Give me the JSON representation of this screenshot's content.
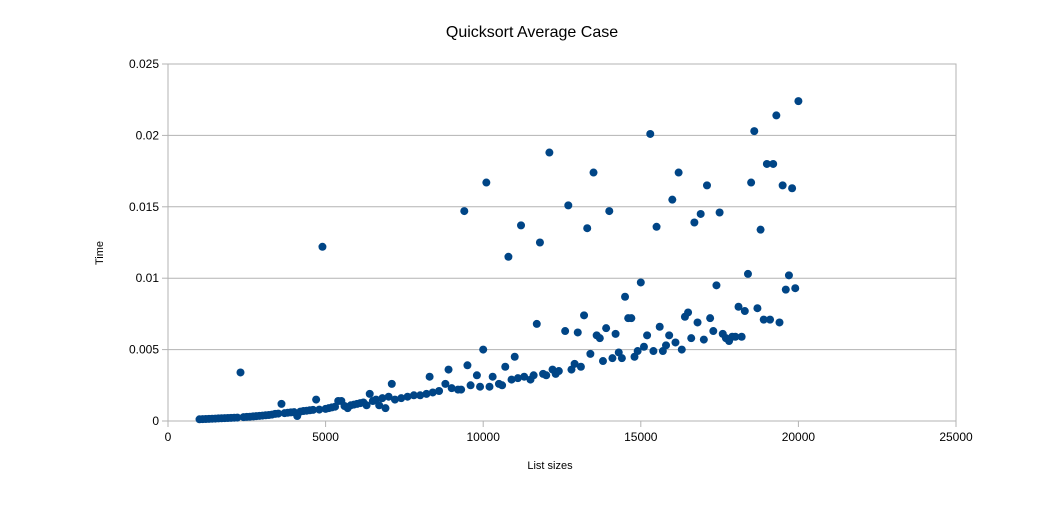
{
  "chart_data": {
    "type": "scatter",
    "title": "Quicksort Average Case",
    "xlabel": "List sizes",
    "ylabel": "Time",
    "xlim": [
      0,
      25000
    ],
    "ylim": [
      0,
      0.025
    ],
    "x_ticks": [
      "0",
      "5000",
      "10000",
      "15000",
      "20000",
      "25000"
    ],
    "y_ticks": [
      "0",
      "0.005",
      "0.01",
      "0.015",
      "0.02",
      "0.025"
    ],
    "grid": "horizontal",
    "legend": "none",
    "marker_color": "#004586",
    "series": [
      {
        "points": [
          [
            1000,
            0.00012
          ],
          [
            1100,
            0.00013
          ],
          [
            1200,
            0.00014
          ],
          [
            1300,
            0.00015
          ],
          [
            1400,
            0.00016
          ],
          [
            1500,
            0.00017
          ],
          [
            1600,
            0.00018
          ],
          [
            1700,
            0.00019
          ],
          [
            1800,
            0.0002
          ],
          [
            1900,
            0.00021
          ],
          [
            2000,
            0.00022
          ],
          [
            2100,
            0.00023
          ],
          [
            2200,
            0.00024
          ],
          [
            2300,
            0.0034
          ],
          [
            2400,
            0.00027
          ],
          [
            2500,
            0.00029
          ],
          [
            2600,
            0.0003
          ],
          [
            2700,
            0.00032
          ],
          [
            2800,
            0.00034
          ],
          [
            2900,
            0.00036
          ],
          [
            3000,
            0.00038
          ],
          [
            3100,
            0.0004
          ],
          [
            3200,
            0.00042
          ],
          [
            3300,
            0.00045
          ],
          [
            3400,
            0.0005
          ],
          [
            3500,
            0.00052
          ],
          [
            3600,
            0.0012
          ],
          [
            3700,
            0.00055
          ],
          [
            3800,
            0.00058
          ],
          [
            3900,
            0.0006
          ],
          [
            4000,
            0.00062
          ],
          [
            4100,
            0.00035
          ],
          [
            4200,
            0.00066
          ],
          [
            4300,
            0.0007
          ],
          [
            4400,
            0.00072
          ],
          [
            4500,
            0.00075
          ],
          [
            4600,
            0.00078
          ],
          [
            4700,
            0.0015
          ],
          [
            4800,
            0.0008
          ],
          [
            4900,
            0.0122
          ],
          [
            5000,
            0.00085
          ],
          [
            5100,
            0.0009
          ],
          [
            5200,
            0.00095
          ],
          [
            5300,
            0.001
          ],
          [
            5400,
            0.0014
          ],
          [
            5500,
            0.0014
          ],
          [
            5600,
            0.00105
          ],
          [
            5700,
            0.0009
          ],
          [
            5800,
            0.0011
          ],
          [
            5900,
            0.00115
          ],
          [
            6000,
            0.0012
          ],
          [
            6100,
            0.00125
          ],
          [
            6200,
            0.0013
          ],
          [
            6300,
            0.0011
          ],
          [
            6400,
            0.0019
          ],
          [
            6500,
            0.0014
          ],
          [
            6600,
            0.0015
          ],
          [
            6700,
            0.0011
          ],
          [
            6800,
            0.0016
          ],
          [
            6900,
            0.0009
          ],
          [
            7000,
            0.0017
          ],
          [
            7100,
            0.0026
          ],
          [
            7200,
            0.0015
          ],
          [
            7400,
            0.0016
          ],
          [
            7600,
            0.0017
          ],
          [
            7800,
            0.0018
          ],
          [
            8000,
            0.0018
          ],
          [
            8200,
            0.0019
          ],
          [
            8300,
            0.0031
          ],
          [
            8400,
            0.002
          ],
          [
            8600,
            0.0021
          ],
          [
            8800,
            0.0026
          ],
          [
            8900,
            0.0036
          ],
          [
            9000,
            0.0023
          ],
          [
            9200,
            0.0022
          ],
          [
            9300,
            0.0022
          ],
          [
            9400,
            0.0147
          ],
          [
            9500,
            0.0039
          ],
          [
            9600,
            0.0025
          ],
          [
            9800,
            0.0032
          ],
          [
            9900,
            0.0024
          ],
          [
            10000,
            0.005
          ],
          [
            10100,
            0.0167
          ],
          [
            10200,
            0.0024
          ],
          [
            10300,
            0.0031
          ],
          [
            10500,
            0.0026
          ],
          [
            10600,
            0.0025
          ],
          [
            10700,
            0.0038
          ],
          [
            10800,
            0.0115
          ],
          [
            10900,
            0.0029
          ],
          [
            11000,
            0.0045
          ],
          [
            11100,
            0.003
          ],
          [
            11200,
            0.0137
          ],
          [
            11300,
            0.0031
          ],
          [
            11500,
            0.0029
          ],
          [
            11600,
            0.0032
          ],
          [
            11700,
            0.0068
          ],
          [
            11800,
            0.0125
          ],
          [
            11900,
            0.0033
          ],
          [
            12000,
            0.0032
          ],
          [
            12100,
            0.0188
          ],
          [
            12200,
            0.0036
          ],
          [
            12300,
            0.0033
          ],
          [
            12400,
            0.0035
          ],
          [
            12600,
            0.0063
          ],
          [
            12700,
            0.0151
          ],
          [
            12800,
            0.0036
          ],
          [
            12900,
            0.004
          ],
          [
            13000,
            0.0062
          ],
          [
            13100,
            0.0038
          ],
          [
            13200,
            0.0074
          ],
          [
            13300,
            0.0135
          ],
          [
            13400,
            0.0047
          ],
          [
            13500,
            0.0174
          ],
          [
            13600,
            0.006
          ],
          [
            13700,
            0.0058
          ],
          [
            13800,
            0.0042
          ],
          [
            13900,
            0.0065
          ],
          [
            14000,
            0.0147
          ],
          [
            14100,
            0.0044
          ],
          [
            14200,
            0.0061
          ],
          [
            14300,
            0.0048
          ],
          [
            14400,
            0.0044
          ],
          [
            14500,
            0.0087
          ],
          [
            14600,
            0.0072
          ],
          [
            14700,
            0.0072
          ],
          [
            14800,
            0.0045
          ],
          [
            14900,
            0.0049
          ],
          [
            15000,
            0.0097
          ],
          [
            15100,
            0.0052
          ],
          [
            15200,
            0.006
          ],
          [
            15300,
            0.0201
          ],
          [
            15400,
            0.0049
          ],
          [
            15500,
            0.0136
          ],
          [
            15600,
            0.0066
          ],
          [
            15700,
            0.0049
          ],
          [
            15800,
            0.0053
          ],
          [
            15900,
            0.006
          ],
          [
            16000,
            0.0155
          ],
          [
            16100,
            0.0055
          ],
          [
            16200,
            0.0174
          ],
          [
            16300,
            0.005
          ],
          [
            16400,
            0.0073
          ],
          [
            16500,
            0.0076
          ],
          [
            16600,
            0.0058
          ],
          [
            16700,
            0.0139
          ],
          [
            16800,
            0.0069
          ],
          [
            16900,
            0.0145
          ],
          [
            17000,
            0.0057
          ],
          [
            17100,
            0.0165
          ],
          [
            17200,
            0.0072
          ],
          [
            17300,
            0.0063
          ],
          [
            17400,
            0.0095
          ],
          [
            17500,
            0.0146
          ],
          [
            17600,
            0.0061
          ],
          [
            17700,
            0.0058
          ],
          [
            17800,
            0.0056
          ],
          [
            17900,
            0.0059
          ],
          [
            18000,
            0.0059
          ],
          [
            18100,
            0.008
          ],
          [
            18200,
            0.0059
          ],
          [
            18300,
            0.0077
          ],
          [
            18400,
            0.0103
          ],
          [
            18500,
            0.0167
          ],
          [
            18600,
            0.0203
          ],
          [
            18700,
            0.0079
          ],
          [
            18800,
            0.0134
          ],
          [
            18900,
            0.0071
          ],
          [
            19000,
            0.018
          ],
          [
            19100,
            0.0071
          ],
          [
            19200,
            0.018
          ],
          [
            19300,
            0.0214
          ],
          [
            19400,
            0.0069
          ],
          [
            19500,
            0.0165
          ],
          [
            19600,
            0.0092
          ],
          [
            19700,
            0.0102
          ],
          [
            19800,
            0.0163
          ],
          [
            19900,
            0.0093
          ],
          [
            20000,
            0.0224
          ]
        ]
      }
    ]
  }
}
